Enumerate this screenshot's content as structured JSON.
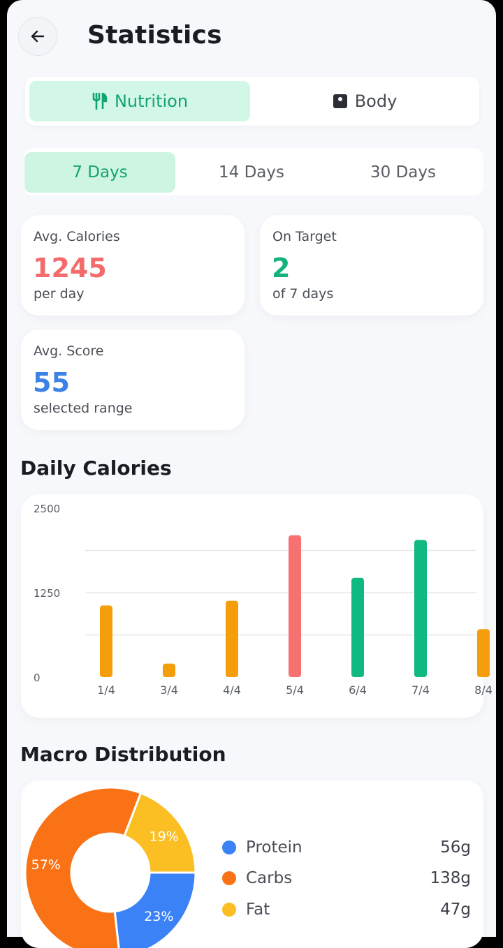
{
  "header": {
    "title": "Statistics",
    "back_icon": "arrow-left-icon"
  },
  "main_tabs": [
    {
      "label": "Nutrition",
      "icon": "fork-knife-icon",
      "active": true
    },
    {
      "label": "Body",
      "icon": "scale-icon",
      "active": false
    }
  ],
  "range_tabs": [
    {
      "label": "7 Days",
      "active": true
    },
    {
      "label": "14 Days",
      "active": false
    },
    {
      "label": "30 Days",
      "active": false
    }
  ],
  "stats": [
    {
      "label": "Avg. Calories",
      "value": "1245",
      "sub": "per day",
      "color": "#f36c6c"
    },
    {
      "label": "On Target",
      "value": "2",
      "sub": "of 7 days",
      "color": "#14b37d"
    },
    {
      "label": "Avg. Score",
      "value": "55",
      "sub": "selected range",
      "color": "#3b82e6"
    }
  ],
  "daily_calories": {
    "title": "Daily Calories"
  },
  "macro": {
    "title": "Macro Distribution",
    "items": [
      {
        "name": "Protein",
        "grams": "56g",
        "percent": "23%",
        "color": "#3b82f6"
      },
      {
        "name": "Carbs",
        "grams": "138g",
        "percent": "57%",
        "color": "#f97316"
      },
      {
        "name": "Fat",
        "grams": "47g",
        "percent": "19%",
        "color": "#fbbf24"
      }
    ]
  },
  "chart_data": [
    {
      "type": "bar",
      "title": "Daily Calories",
      "categories": [
        "1/4",
        "3/4",
        "4/4",
        "5/4",
        "6/4",
        "7/4",
        "8/4"
      ],
      "values": [
        1060,
        200,
        1130,
        2100,
        1470,
        2030,
        710
      ],
      "bar_colors": [
        "#f59e0b",
        "#f59e0b",
        "#f59e0b",
        "#f87171",
        "#10b981",
        "#10b981",
        "#f59e0b"
      ],
      "ylim": [
        0,
        2500
      ],
      "yticks": [
        "0",
        "1250",
        "2500"
      ],
      "grid": true
    },
    {
      "type": "pie",
      "categories": [
        "Protein",
        "Carbs",
        "Fat"
      ],
      "values": [
        23,
        57,
        19
      ],
      "labels": [
        "23%",
        "57%",
        "19%"
      ],
      "colors": [
        "#3b82f6",
        "#f97316",
        "#fbbf24"
      ]
    }
  ]
}
